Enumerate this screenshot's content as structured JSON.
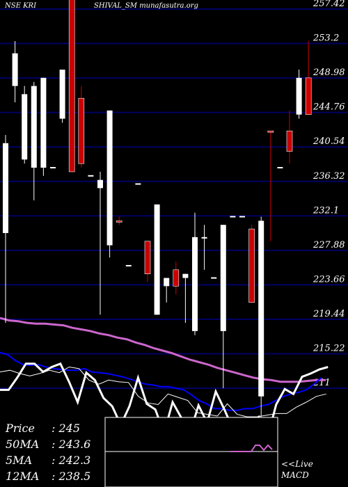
{
  "header": {
    "symbol_text": "NSE KRI",
    "name_text": "SHIVAL_SM munafasutra.org"
  },
  "stats": {
    "price_key": "Price",
    "price_val": "245",
    "ma50_key": "50MA",
    "ma50_val": "243.6",
    "ma5_key": "5MA",
    "ma5_val": "242.3",
    "ma12_key": "12MA",
    "ma12_val": "238.5"
  },
  "macd_panel": {
    "live_label": "<<Live",
    "macd_label": "MACD"
  },
  "chart_data": {
    "type": "candlestick",
    "ylim": [
      207,
      258
    ],
    "price_grid": [
      "257.42",
      "253.2",
      "248.98",
      "244.76",
      "240.54",
      "236.32",
      "232.1",
      "227.88",
      "223.66",
      "219.44",
      "215.22",
      "211"
    ],
    "colors": {
      "background": "#000000",
      "grid": "#000066",
      "up": "#ffffff",
      "down": "#cc0000",
      "ma_long": "#cc66cc",
      "ma_mid": "#0000ff",
      "ma_short": "#ffffff",
      "macd_signal": "#cc66cc"
    },
    "candles": [
      {
        "o": 230.0,
        "h": 242.0,
        "l": 219.0,
        "c": 241.0,
        "dir": "up"
      },
      {
        "o": 248.0,
        "h": 253.5,
        "l": 246.0,
        "c": 252.0,
        "dir": "up"
      },
      {
        "o": 239.0,
        "h": 248.0,
        "l": 238.5,
        "c": 247.0,
        "dir": "up"
      },
      {
        "o": 238.0,
        "h": 248.5,
        "l": 234.0,
        "c": 248.0,
        "dir": "up"
      },
      {
        "o": 238.0,
        "h": 249.0,
        "l": 237.0,
        "c": 249.0,
        "dir": "up"
      },
      {
        "o": 238.0,
        "h": 238.0,
        "l": 238.0,
        "c": 238.0,
        "dir": "flat"
      },
      {
        "o": 244.0,
        "h": 249.5,
        "l": 243.5,
        "c": 250.0,
        "dir": "up"
      },
      {
        "o": 268.0,
        "h": 270.0,
        "l": 237.5,
        "c": 237.5,
        "dir": "down"
      },
      {
        "o": 246.5,
        "h": 248.0,
        "l": 238.0,
        "c": 238.5,
        "dir": "down"
      },
      {
        "o": 237.0,
        "h": 237.0,
        "l": 237.0,
        "c": 237.0,
        "dir": "flat"
      },
      {
        "o": 235.5,
        "h": 237.5,
        "l": 220.0,
        "c": 236.5,
        "dir": "up"
      },
      {
        "o": 228.5,
        "h": 245.0,
        "l": 227.0,
        "c": 245.0,
        "dir": "up"
      },
      {
        "o": 231.5,
        "h": 232.0,
        "l": 231.0,
        "c": 231.5,
        "dir": "down"
      },
      {
        "o": 226.0,
        "h": 226.0,
        "l": 226.0,
        "c": 226.0,
        "dir": "flat"
      },
      {
        "o": 236.0,
        "h": 236.0,
        "l": 236.0,
        "c": 236.0,
        "dir": "flat"
      },
      {
        "o": 229.0,
        "h": 229.0,
        "l": 224.0,
        "c": 225.0,
        "dir": "down"
      },
      {
        "o": 220.0,
        "h": 233.5,
        "l": 220.0,
        "c": 233.5,
        "dir": "up"
      },
      {
        "o": 224.5,
        "h": 224.5,
        "l": 221.5,
        "c": 223.5,
        "dir": "up"
      },
      {
        "o": 225.5,
        "h": 226.5,
        "l": 222.5,
        "c": 223.5,
        "dir": "down"
      },
      {
        "o": 225.0,
        "h": 224.5,
        "l": 219.0,
        "c": 224.5,
        "dir": "up"
      },
      {
        "o": 218.0,
        "h": 232.5,
        "l": 217.5,
        "c": 229.5,
        "dir": "up"
      },
      {
        "o": 229.5,
        "h": 231.0,
        "l": 225.5,
        "c": 229.5,
        "dir": "up"
      },
      {
        "o": 224.5,
        "h": 224.5,
        "l": 224.5,
        "c": 224.5,
        "dir": "flat"
      },
      {
        "o": 218.0,
        "h": 231.0,
        "l": 211.0,
        "c": 231.0,
        "dir": "up"
      },
      {
        "o": 232.0,
        "h": 232.0,
        "l": 232.0,
        "c": 232.0,
        "dir": "flat"
      },
      {
        "o": 232.0,
        "h": 232.0,
        "l": 232.0,
        "c": 232.0,
        "dir": "flat"
      },
      {
        "o": 230.5,
        "h": 231.0,
        "l": 221.5,
        "c": 221.5,
        "dir": "down"
      },
      {
        "o": 210.0,
        "h": 232.0,
        "l": 207.5,
        "c": 231.5,
        "dir": "up"
      },
      {
        "o": 242.5,
        "h": 242.5,
        "l": 229.0,
        "c": 242.5,
        "dir": "down"
      },
      {
        "o": 238.0,
        "h": 238.0,
        "l": 238.0,
        "c": 238.0,
        "dir": "flat"
      },
      {
        "o": 240.0,
        "h": 245.0,
        "l": 238.5,
        "c": 242.5,
        "dir": "down"
      },
      {
        "o": 244.5,
        "h": 250.0,
        "l": 244.0,
        "c": 249.0,
        "dir": "up"
      },
      {
        "o": 244.5,
        "h": 253.5,
        "l": 244.5,
        "c": 249.0,
        "dir": "down"
      }
    ],
    "ma_long": [
      219.6,
      219.3,
      219.2,
      219.0,
      218.9,
      218.9,
      218.8,
      218.7,
      218.4,
      218.2,
      218.0,
      217.7,
      217.5,
      217.2,
      217.0,
      216.6,
      216.3,
      215.9,
      215.6,
      215.3,
      214.9,
      214.5,
      214.2,
      213.9,
      213.5,
      213.2,
      212.9,
      212.6,
      212.3,
      212.1,
      212.0,
      211.8,
      211.8,
      211.8,
      211.9,
      212.0,
      212.0
    ],
    "ma_mid": [
      215.4,
      215.1,
      214.4,
      213.9,
      213.8,
      213.9,
      213.6,
      213.4,
      213.3,
      213.2,
      213.2,
      213.4,
      213.0,
      212.9,
      212.8,
      212.6,
      212.4,
      212.1,
      211.8,
      211.5,
      211.4,
      211.2,
      211.2,
      211.0,
      210.8,
      210.2,
      209.5,
      209.1,
      208.5,
      208.5,
      208.3,
      208.3,
      208.5,
      208.5,
      208.8,
      209.0,
      209.5,
      210.0,
      210.3,
      210.5,
      210.8,
      211.5,
      212.3
    ],
    "ma_short": [
      213.0,
      213.2,
      212.8,
      212.5,
      212.8,
      213.2,
      212.9,
      213.6,
      213.4,
      212.0,
      211.5,
      212.0,
      211.8,
      211.7,
      210.0,
      209.2,
      209.0,
      210.3,
      209.9,
      209.5,
      208.0,
      207.8,
      207.6,
      209.1,
      207.8,
      207.5,
      207.5,
      207.7,
      207.9,
      207.9,
      208.7,
      209.3,
      210.0,
      210.3
    ],
    "macd": [
      210.8,
      210.8,
      212.3,
      214.0,
      214.0,
      213.0,
      213.6,
      214.0,
      211.8,
      209.3,
      212.9,
      212.0,
      209.8,
      208.8,
      206.5,
      208.8,
      212.3,
      209.1,
      208.4,
      205.5,
      209.3,
      207.4,
      205.5,
      208.9,
      206.8,
      210.6,
      208.4,
      206.0,
      206.5,
      206.7,
      207.5,
      205.0,
      209.0,
      210.9,
      210.3,
      212.4,
      212.8,
      213.3,
      213.6
    ],
    "macd_signal": [
      0,
      0,
      0,
      0,
      0,
      0,
      -0.9,
      -0.9,
      -0.2,
      -0.9,
      -0.3
    ]
  }
}
